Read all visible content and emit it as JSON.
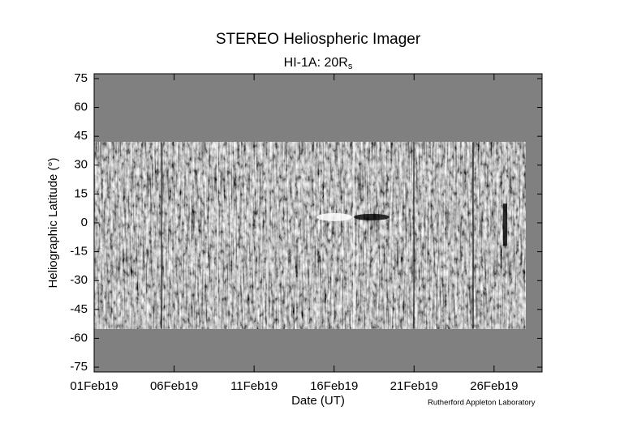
{
  "chart_data": {
    "type": "image",
    "title": "STEREO Heliospheric Imager",
    "subtitle": [
      "HI-1A: 20R",
      "s"
    ],
    "xlabel": "Date (UT)",
    "ylabel": "Heliographic Latitude (°)",
    "credit": "Rutherford Appleton Laboratory",
    "xlim": [
      "2019-02-01",
      "2019-03-01"
    ],
    "xticks": [
      {
        "value": "2019-02-01",
        "label": "01Feb19"
      },
      {
        "value": "2019-02-06",
        "label": "06Feb19"
      },
      {
        "value": "2019-02-11",
        "label": "11Feb19"
      },
      {
        "value": "2019-02-16",
        "label": "16Feb19"
      },
      {
        "value": "2019-02-21",
        "label": "21Feb19"
      },
      {
        "value": "2019-02-26",
        "label": "26Feb19"
      }
    ],
    "ylim": [
      -77.5,
      77.5
    ],
    "yticks": [
      75,
      60,
      45,
      30,
      15,
      0,
      -15,
      -30,
      -45,
      -60,
      -75
    ],
    "background": "#808080"
  }
}
